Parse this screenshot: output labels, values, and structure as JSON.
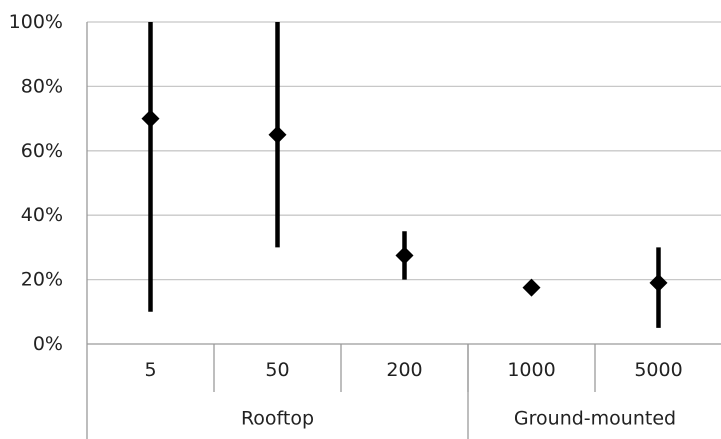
{
  "chart_data": {
    "type": "scatter",
    "y_format": "percent",
    "ylim": [
      0,
      100
    ],
    "y_ticks": [
      0,
      20,
      40,
      60,
      80,
      100
    ],
    "y_tick_labels": [
      "0%",
      "20%",
      "40%",
      "60%",
      "80%",
      "100%"
    ],
    "grid": true,
    "legend": "none",
    "categories": [
      "5",
      "50",
      "200",
      "1000",
      "5000"
    ],
    "groups": [
      {
        "label": "Rooftop",
        "categories": [
          "5",
          "50",
          "200"
        ]
      },
      {
        "label": "Ground-mounted",
        "categories": [
          "1000",
          "5000"
        ]
      }
    ],
    "points": [
      {
        "category": "5",
        "value": 70,
        "low": 10,
        "high": 100
      },
      {
        "category": "50",
        "value": 65,
        "low": 30,
        "high": 100
      },
      {
        "category": "200",
        "value": 27.5,
        "low": 20,
        "high": 35
      },
      {
        "category": "1000",
        "value": 17.5,
        "low": null,
        "high": null
      },
      {
        "category": "5000",
        "value": 19,
        "low": 5,
        "high": 30
      }
    ],
    "marker": "diamond",
    "colors": {
      "marker": "#000000",
      "grid": "#c8c8c8",
      "axis": "#9a9a9a",
      "text": "#222222"
    }
  }
}
